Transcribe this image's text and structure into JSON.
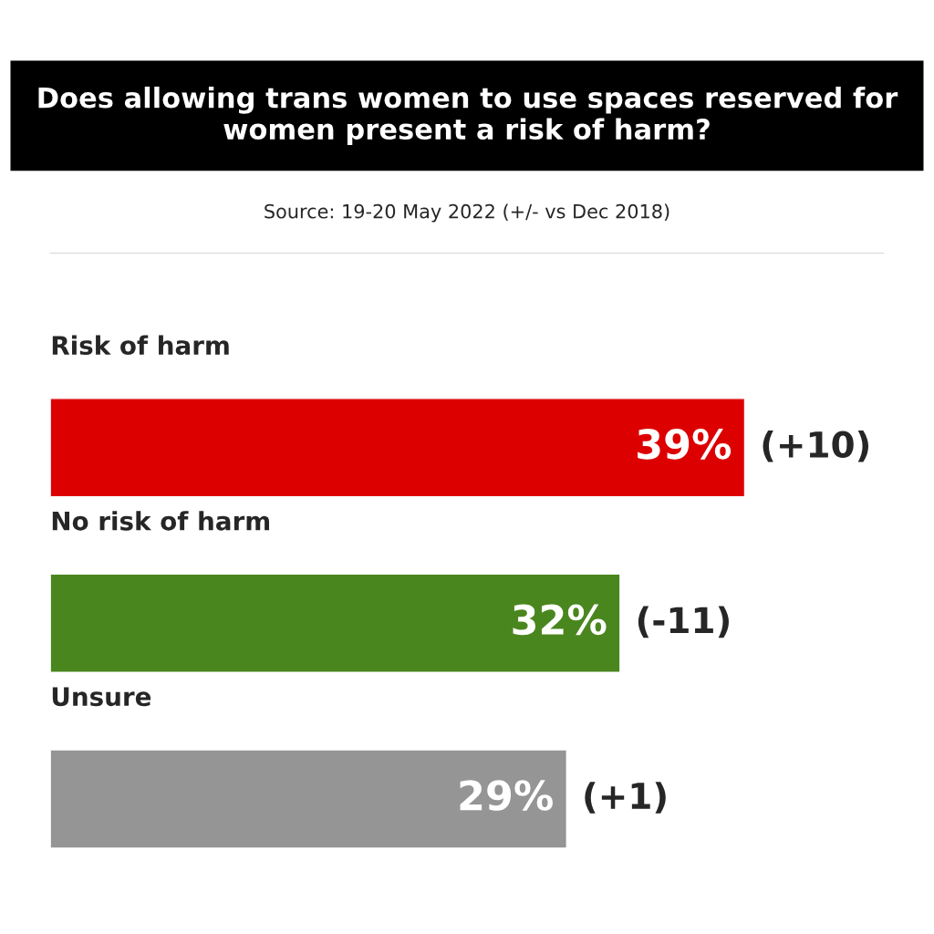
{
  "chart_data": {
    "type": "bar",
    "orientation": "horizontal",
    "title": "Does allowing trans women to use spaces reserved for women present a risk of harm?",
    "subtitle": "Source: 19-20 May 2022 (+/- vs Dec 2018)",
    "categories": [
      "Risk of harm",
      "No risk of harm",
      "Unsure"
    ],
    "values": [
      39,
      32,
      29
    ],
    "colors": [
      "#dd0000",
      "#4a861e",
      "#959595"
    ],
    "value_labels": [
      "39%",
      "32%",
      "29%"
    ],
    "annotations": [
      {
        "text": "(+10)",
        "x": 39,
        "y": "Risk of harm"
      },
      {
        "text": "(-11)",
        "x": 32,
        "y": "No risk of harm"
      },
      {
        "text": "(+1)",
        "x": 29,
        "y": "Unsure"
      }
    ]
  }
}
